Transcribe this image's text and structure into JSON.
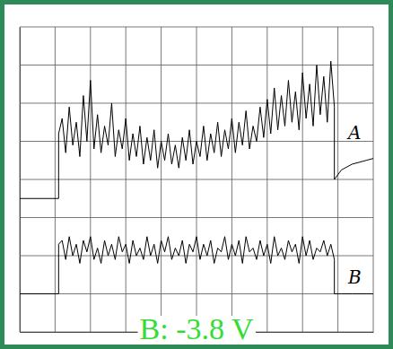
{
  "chart_data": {
    "type": "line",
    "x": [
      0,
      1.1,
      1.1,
      1.2,
      1.3,
      1.4,
      1.5,
      1.6,
      1.7,
      1.8,
      1.9,
      2.0,
      2.1,
      2.2,
      2.3,
      2.4,
      2.5,
      2.6,
      2.7,
      2.8,
      2.9,
      3.0,
      3.1,
      3.2,
      3.3,
      3.4,
      3.5,
      3.6,
      3.7,
      3.8,
      3.9,
      4.0,
      4.1,
      4.2,
      4.3,
      4.4,
      4.5,
      4.6,
      4.7,
      4.8,
      4.9,
      5.0,
      5.1,
      5.2,
      5.3,
      5.4,
      5.5,
      5.6,
      5.7,
      5.8,
      5.9,
      6.0,
      6.1,
      6.2,
      6.3,
      6.4,
      6.5,
      6.6,
      6.7,
      6.8,
      6.9,
      7.0,
      7.1,
      7.2,
      7.3,
      7.4,
      7.5,
      7.6,
      7.7,
      7.8,
      7.9,
      8.0,
      8.1,
      8.2,
      8.3,
      8.4,
      8.5,
      8.6,
      8.7,
      8.8,
      8.9,
      8.9,
      9.1,
      9.4,
      9.8,
      10
    ],
    "series": [
      {
        "name": "A",
        "color": "#000000",
        "values": [
          -0.5,
          -0.5,
          1.2,
          1.6,
          0.7,
          1.9,
          0.9,
          1.5,
          0.6,
          2.2,
          1.0,
          2.6,
          0.8,
          1.7,
          0.7,
          1.4,
          0.9,
          2.0,
          0.6,
          1.3,
          0.8,
          1.6,
          0.5,
          1.2,
          0.6,
          1.4,
          0.4,
          1.1,
          0.5,
          1.3,
          0.3,
          1.0,
          0.5,
          1.2,
          0.4,
          0.9,
          0.3,
          1.1,
          0.5,
          1.3,
          0.4,
          1.0,
          0.6,
          1.4,
          0.5,
          1.2,
          0.7,
          1.5,
          0.6,
          1.3,
          0.8,
          1.6,
          0.7,
          1.5,
          0.9,
          1.8,
          0.8,
          1.4,
          1.0,
          1.9,
          1.1,
          2.1,
          1.2,
          2.4,
          1.3,
          2.2,
          1.4,
          2.6,
          1.5,
          2.3,
          1.3,
          2.8,
          1.6,
          2.5,
          1.4,
          3.0,
          1.7,
          2.7,
          1.5,
          3.1,
          1.9,
          0.0,
          0.25,
          0.4,
          0.5,
          0.55
        ]
      },
      {
        "name": "B",
        "color": "#000000",
        "values": [
          -3.0,
          -3.0,
          -1.7,
          -1.6,
          -2.1,
          -1.5,
          -2.0,
          -1.7,
          -2.2,
          -1.6,
          -1.9,
          -1.5,
          -2.1,
          -1.8,
          -2.2,
          -1.6,
          -2.0,
          -1.7,
          -2.1,
          -1.5,
          -1.9,
          -1.7,
          -2.2,
          -1.6,
          -2.0,
          -1.8,
          -2.1,
          -1.5,
          -2.0,
          -1.7,
          -2.2,
          -1.6,
          -1.9,
          -1.5,
          -2.1,
          -1.8,
          -2.0,
          -1.6,
          -2.2,
          -1.7,
          -1.9,
          -1.5,
          -2.1,
          -1.7,
          -2.0,
          -1.6,
          -2.2,
          -1.8,
          -1.9,
          -1.5,
          -2.1,
          -1.7,
          -2.0,
          -1.6,
          -2.2,
          -1.5,
          -1.9,
          -1.8,
          -2.1,
          -1.6,
          -2.0,
          -1.7,
          -2.2,
          -1.5,
          -2.0,
          -1.8,
          -2.1,
          -1.6,
          -1.9,
          -1.7,
          -2.2,
          -1.5,
          -2.0,
          -1.6,
          -2.1,
          -1.8,
          -1.9,
          -1.6,
          -2.0,
          -1.7,
          -2.1,
          -3.0,
          -3.0,
          -3.0,
          -3.0,
          -3.0
        ]
      }
    ],
    "xlim": [
      0,
      10
    ],
    "ylim": [
      -4,
      4
    ],
    "xticks": [
      0,
      1,
      2,
      3,
      4,
      5,
      6,
      7,
      8,
      9,
      10
    ],
    "yticks": [
      -4,
      -3,
      -2,
      -1,
      0,
      1,
      2,
      3,
      4
    ],
    "grid": true,
    "tick_labels": false,
    "annotations": [
      "B: -3.8 V"
    ]
  }
}
